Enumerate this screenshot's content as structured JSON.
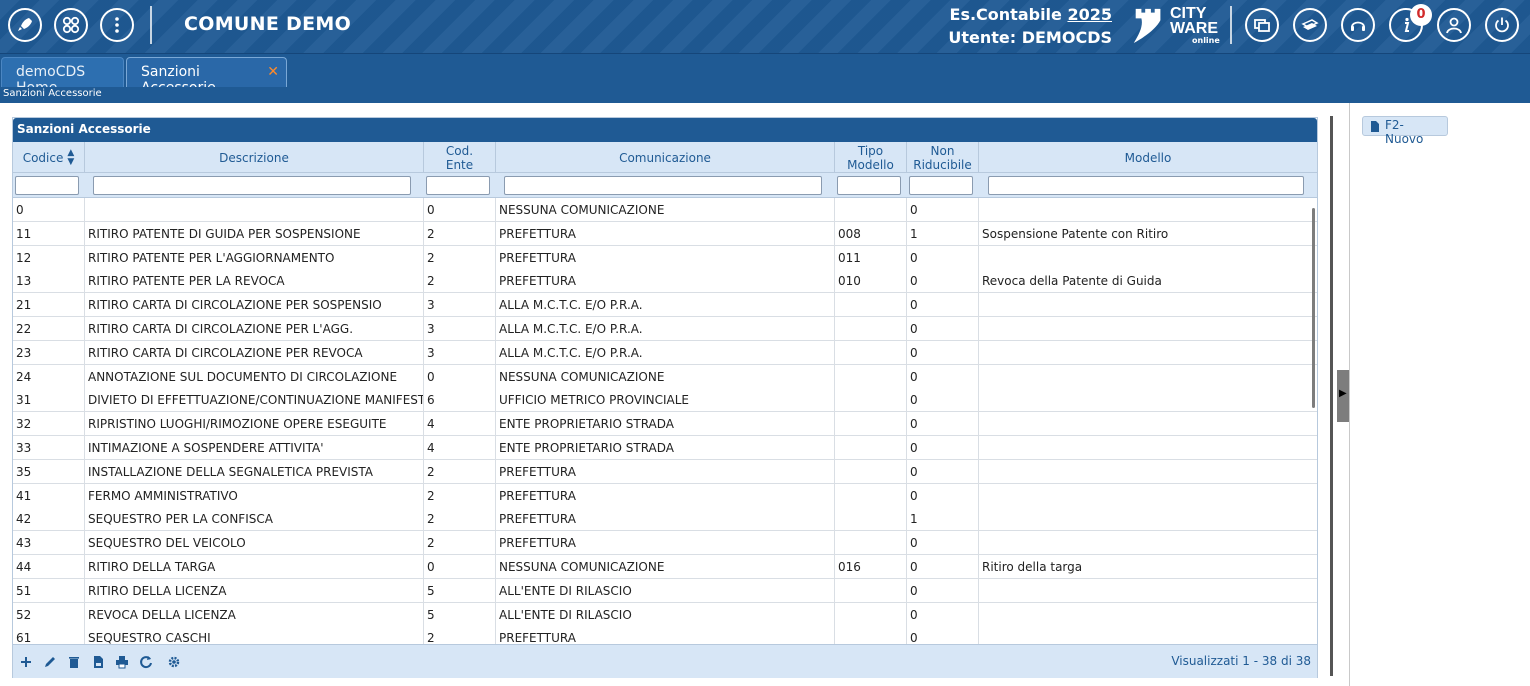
{
  "header": {
    "app_title": "COMUNE DEMO",
    "es_label": "Es.Contabile",
    "es_year": "2025",
    "user_label": "Utente: DEMOCDS",
    "logo_line1": "CITY",
    "logo_line2": "WARE",
    "logo_line3": "online",
    "notification_count": "0"
  },
  "tabs": [
    {
      "label": "demoCDS Home"
    },
    {
      "label": "Sanzioni Accessorie",
      "close": "✕"
    }
  ],
  "breadcrumb": "Sanzioni Accessorie",
  "grid": {
    "caption": "Sanzioni Accessorie",
    "columns": [
      {
        "label": "Codice"
      },
      {
        "label": "Descrizione"
      },
      {
        "label": "Cod.",
        "label2": "Ente"
      },
      {
        "label": "Comunicazione"
      },
      {
        "label": "Tipo",
        "label2": "Modello"
      },
      {
        "label": "Non",
        "label2": "Riducibile"
      },
      {
        "label": "Modello"
      }
    ],
    "rows": [
      [
        "0",
        "",
        "0",
        "NESSUNA COMUNICAZIONE",
        "",
        "0",
        ""
      ],
      [
        "11",
        "RITIRO PATENTE DI GUIDA PER SOSPENSIONE",
        "2",
        "PREFETTURA",
        "008",
        "1",
        "Sospensione Patente con Ritiro"
      ],
      [
        "12",
        "RITIRO PATENTE PER L'AGGIORNAMENTO",
        "2",
        "PREFETTURA",
        "011",
        "0",
        ""
      ],
      [
        "13",
        "RITIRO PATENTE PER LA REVOCA",
        "2",
        "PREFETTURA",
        "010",
        "0",
        "Revoca della Patente di Guida"
      ],
      [
        "21",
        "RITIRO CARTA DI CIRCOLAZIONE PER SOSPENSIO",
        "3",
        "ALLA M.C.T.C. E/O P.R.A.",
        "",
        "0",
        ""
      ],
      [
        "22",
        "RITIRO CARTA DI CIRCOLAZIONE PER L'AGG.",
        "3",
        "ALLA M.C.T.C. E/O P.R.A.",
        "",
        "0",
        ""
      ],
      [
        "23",
        "RITIRO CARTA DI CIRCOLAZIONE PER REVOCA",
        "3",
        "ALLA M.C.T.C. E/O P.R.A.",
        "",
        "0",
        ""
      ],
      [
        "24",
        "ANNOTAZIONE SUL DOCUMENTO DI CIRCOLAZIONE",
        "0",
        "NESSUNA COMUNICAZIONE",
        "",
        "0",
        ""
      ],
      [
        "31",
        "DIVIETO DI EFFETTUAZIONE/CONTINUAZIONE MANIFESTAZIONE",
        "6",
        "UFFICIO METRICO PROVINCIALE",
        "",
        "0",
        ""
      ],
      [
        "32",
        "RIPRISTINO LUOGHI/RIMOZIONE OPERE ESEGUITE",
        "4",
        "ENTE PROPRIETARIO STRADA",
        "",
        "0",
        ""
      ],
      [
        "33",
        "INTIMAZIONE A SOSPENDERE ATTIVITA'",
        "4",
        "ENTE PROPRIETARIO STRADA",
        "",
        "0",
        ""
      ],
      [
        "35",
        "INSTALLAZIONE DELLA SEGNALETICA PREVISTA",
        "2",
        "PREFETTURA",
        "",
        "0",
        ""
      ],
      [
        "41",
        "FERMO AMMINISTRATIVO",
        "2",
        "PREFETTURA",
        "",
        "0",
        ""
      ],
      [
        "42",
        "SEQUESTRO PER LA CONFISCA",
        "2",
        "PREFETTURA",
        "",
        "1",
        ""
      ],
      [
        "43",
        "SEQUESTRO DEL VEICOLO",
        "2",
        "PREFETTURA",
        "",
        "0",
        ""
      ],
      [
        "44",
        "RITIRO DELLA TARGA",
        "0",
        "NESSUNA COMUNICAZIONE",
        "016",
        "0",
        "Ritiro della targa"
      ],
      [
        "51",
        "RITIRO DELLA LICENZA",
        "5",
        "ALL'ENTE DI RILASCIO",
        "",
        "0",
        ""
      ],
      [
        "52",
        "REVOCA DELLA LICENZA",
        "5",
        "ALL'ENTE DI RILASCIO",
        "",
        "0",
        ""
      ],
      [
        "61",
        "SEQUESTRO CASCHI",
        "2",
        "PREFETTURA",
        "",
        "0",
        ""
      ]
    ],
    "pager": "Visualizzati 1 - 38 di 38"
  },
  "side": {
    "new_button": "F2-Nuovo"
  }
}
